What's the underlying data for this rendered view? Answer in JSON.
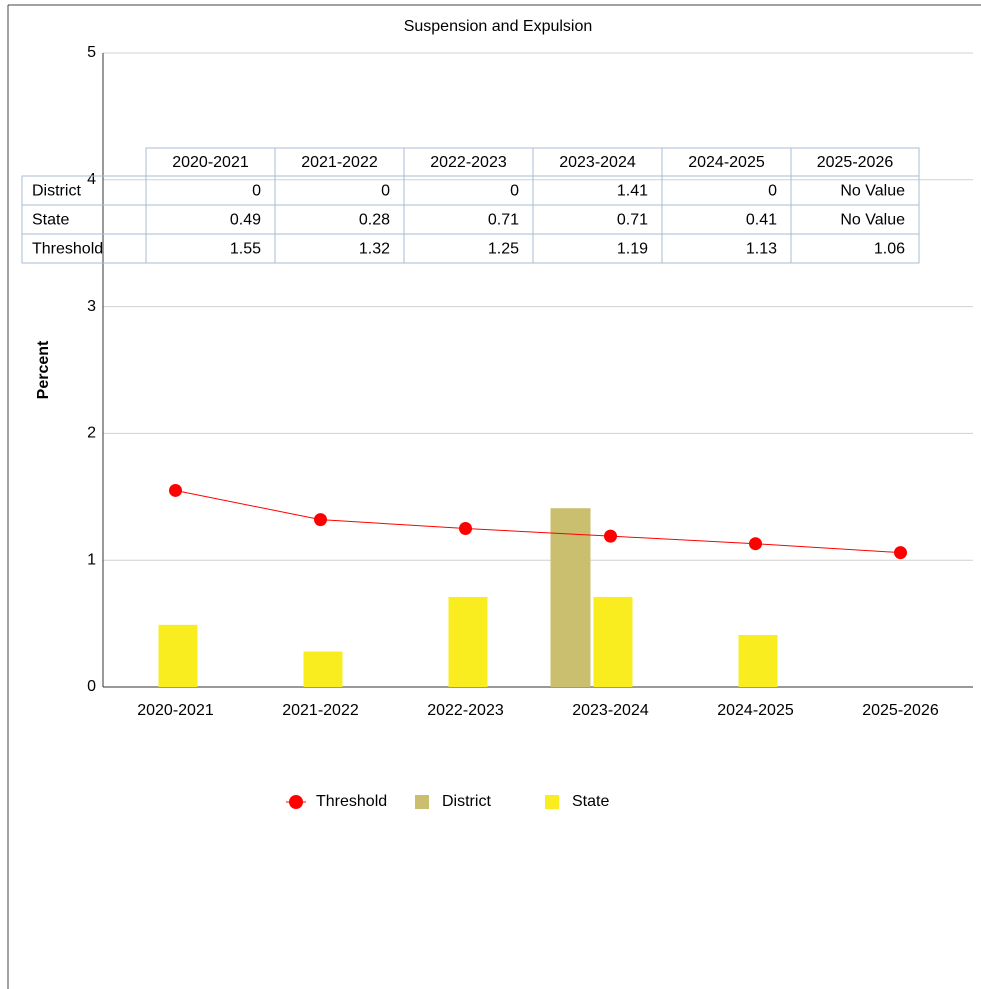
{
  "chart_data": {
    "type": "bar",
    "title": "Suspension and Expulsion",
    "y_label": "Percent",
    "categories": [
      "2020-2021",
      "2021-2022",
      "2022-2023",
      "2023-2024",
      "2024-2025",
      "2025-2026"
    ],
    "series": [
      {
        "name": "Threshold",
        "type": "line",
        "color": "#ff0000",
        "values": [
          1.55,
          1.32,
          1.25,
          1.19,
          1.13,
          1.06
        ]
      },
      {
        "name": "District",
        "type": "bar",
        "color": "#c9bf6f",
        "values": [
          0,
          0,
          0,
          1.41,
          0,
          null
        ],
        "value_labels": [
          "0",
          "0",
          "0",
          "1.41",
          "0",
          "No Value"
        ]
      },
      {
        "name": "State",
        "type": "bar",
        "color": "#f9ed20",
        "values": [
          0.49,
          0.28,
          0.71,
          0.71,
          0.41,
          null
        ],
        "value_labels": [
          "0.49",
          "0.28",
          "0.71",
          "0.71",
          "0.41",
          "No Value"
        ]
      }
    ],
    "ylim": [
      0,
      5
    ],
    "yticks": [
      0,
      1,
      2,
      3,
      4,
      5
    ],
    "grid": true,
    "legend": "bottom"
  }
}
